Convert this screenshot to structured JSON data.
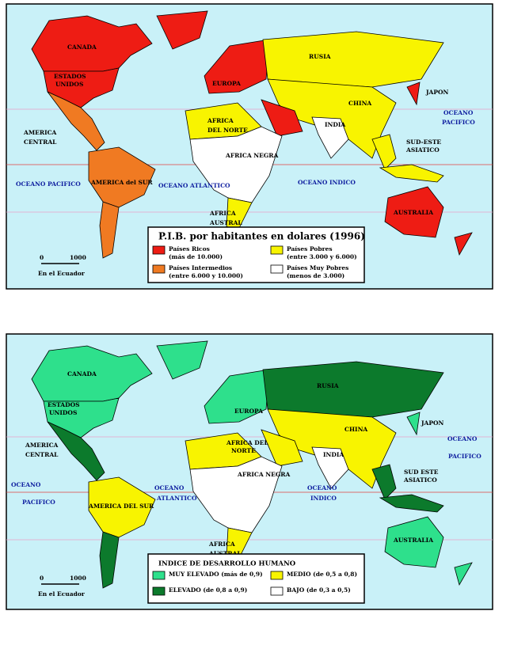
{
  "maps": [
    {
      "labels": [
        "CANADA",
        "ESTADOS",
        "UNIDOS",
        "EUROPA",
        "RUSIA",
        "CHINA",
        "JAPON",
        "OCEANO",
        "PACIFICO",
        "AMERICA",
        "CENTRAL",
        "AFRICA",
        "DEL NORTE",
        "INDIA",
        "SUD-ESTE",
        "ASIATICO",
        "AFRICA NEGRA",
        "OCEANO PACIFICO",
        "AMERICA del SUR",
        "OCEANO ATLANTICO",
        "OCEANO INDICO",
        "AFRICA",
        "AUSTRAL",
        "AUSTRALIA"
      ],
      "legend": {
        "title": "P.I.B. por habitantes en dolares  (1996)",
        "items": [
          {
            "label": "Países Ricos",
            "sublabel": "(más de 10.000)",
            "color": "#ee1c14"
          },
          {
            "label": "Países Intermedios",
            "sublabel": "(entre 6.000 y 10.000)",
            "color": "#f07a22"
          },
          {
            "label": "Países Pobres",
            "sublabel": "(entre 3.000 y 6.000)",
            "color": "#f8f400"
          },
          {
            "label": "Países Muy Pobres",
            "sublabel": "(menos de 3.000)",
            "color": "#ffffff"
          }
        ]
      },
      "scale": {
        "start": "0",
        "end": "1000",
        "caption": "En el Ecuador"
      }
    },
    {
      "labels": [
        "CANADA",
        "ESTADOS",
        "UNIDOS",
        "EUROPA",
        "RUSIA",
        "CHINA",
        "JAPON",
        "OCEANO",
        "PACIFICO",
        "AMERICA",
        "CENTRAL",
        "AFRICA DEL",
        "NORTE",
        "INDIA",
        "SUD ESTE",
        "ASIATICO",
        "AFRICA NEGRA",
        "OCEANO",
        "PACIFICO",
        "OCEANO",
        "ATLANTICO",
        "OCEANO",
        "INDICO",
        "AMERICA DEL SUR",
        "AFRICA",
        "AUSTRAL",
        "AUSTRALIA"
      ],
      "legend": {
        "title": "INDICE  DE  DESARROLLO  HUMANO",
        "items": [
          {
            "label": "MUY ELEVADO  (más de 0,9)",
            "color": "#2ee08c"
          },
          {
            "label": "ELEVADO  (de 0,8 a 0,9)",
            "color": "#0c7a2c"
          },
          {
            "label": "MEDIO  (de 0,5 a 0,8)",
            "color": "#f8f400"
          },
          {
            "label": "BAJO  (de 0,3 a 0,5)",
            "color": "#ffffff"
          }
        ]
      },
      "scale": {
        "start": "0",
        "end": "1000",
        "caption": "En el Ecuador"
      }
    }
  ]
}
